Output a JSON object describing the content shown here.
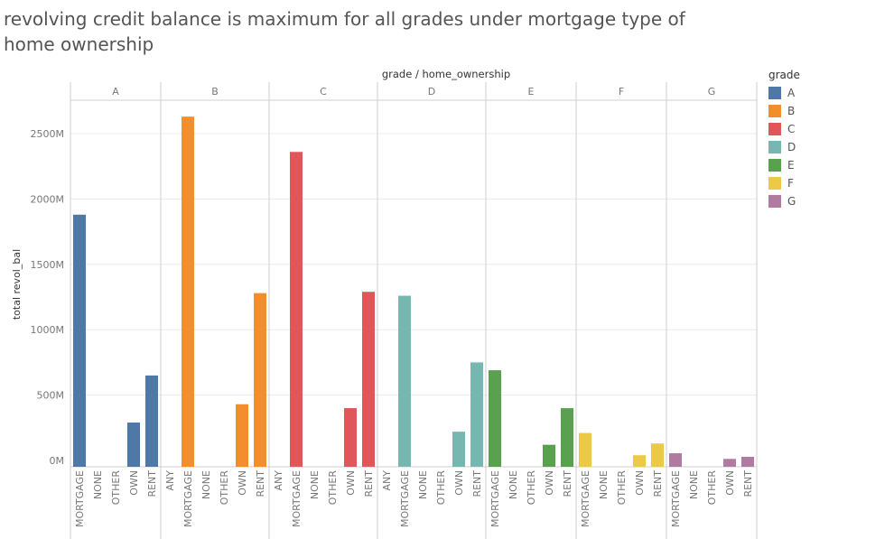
{
  "title": "revolving credit balance is maximum for all grades under mortgage type of home ownership",
  "chart_data": {
    "type": "bar",
    "title": "revolving credit balance is maximum for all grades under mortgage type of home ownership",
    "header_label": "grade / home_ownership",
    "ylabel": "total revol_bal",
    "ylim": [
      0,
      2700
    ],
    "yticks": [
      0,
      500,
      1000,
      1500,
      2000,
      2500
    ],
    "ytick_labels": [
      "0M",
      "500M",
      "1000M",
      "1500M",
      "2000M",
      "2500M"
    ],
    "grid": true,
    "legend_title": "grade",
    "legend_position": "right",
    "groups": [
      {
        "name": "A",
        "color": "#4e79a7",
        "categories": [
          "MORTGAGE",
          "NONE",
          "OTHER",
          "OWN",
          "RENT"
        ],
        "values": [
          1880,
          0,
          0,
          290,
          650
        ]
      },
      {
        "name": "B",
        "color": "#f28e2b",
        "categories": [
          "ANY",
          "MORTGAGE",
          "NONE",
          "OTHER",
          "OWN",
          "RENT"
        ],
        "values": [
          0,
          2630,
          0,
          0,
          430,
          1280
        ]
      },
      {
        "name": "C",
        "color": "#e15759",
        "categories": [
          "ANY",
          "MORTGAGE",
          "NONE",
          "OTHER",
          "OWN",
          "RENT"
        ],
        "values": [
          0,
          2360,
          0,
          0,
          400,
          1290
        ]
      },
      {
        "name": "D",
        "color": "#76b7b2",
        "categories": [
          "ANY",
          "MORTGAGE",
          "NONE",
          "OTHER",
          "OWN",
          "RENT"
        ],
        "values": [
          0,
          1260,
          0,
          0,
          220,
          750
        ]
      },
      {
        "name": "E",
        "color": "#59a14f",
        "categories": [
          "MORTGAGE",
          "NONE",
          "OTHER",
          "OWN",
          "RENT"
        ],
        "values": [
          690,
          0,
          0,
          120,
          400
        ]
      },
      {
        "name": "F",
        "color": "#edc948",
        "categories": [
          "MORTGAGE",
          "NONE",
          "OTHER",
          "OWN",
          "RENT"
        ],
        "values": [
          210,
          0,
          0,
          40,
          130
        ]
      },
      {
        "name": "G",
        "color": "#b07aa1",
        "categories": [
          "MORTGAGE",
          "NONE",
          "OTHER",
          "OWN",
          "RENT"
        ],
        "values": [
          55,
          0,
          0,
          12,
          28
        ]
      }
    ]
  }
}
